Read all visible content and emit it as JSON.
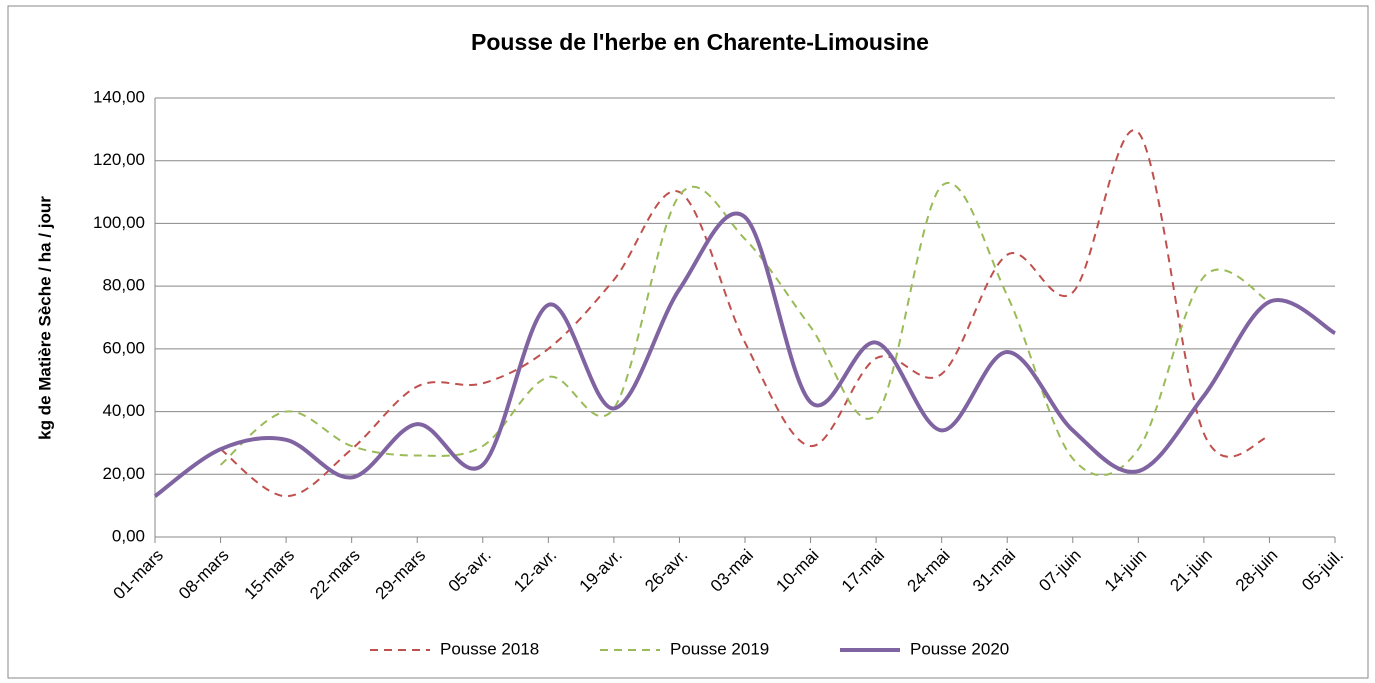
{
  "chart_data": {
    "type": "line",
    "title": "Pousse de l'herbe en Charente-Limousine",
    "y_label": "kg de Matière Sèche / ha / jour",
    "categories": [
      "01-mars",
      "08-mars",
      "15-mars",
      "22-mars",
      "29-mars",
      "05-avr.",
      "12-avr.",
      "19-avr.",
      "26-avr.",
      "03-mai",
      "10-mai",
      "17-mai",
      "24-mai",
      "31-mai",
      "07-juin",
      "14-juin",
      "21-juin",
      "28-juin",
      "05-juil."
    ],
    "series": [
      {
        "name": "Pousse 2018",
        "color": "#c0504d",
        "dash": "dashed",
        "values": [
          null,
          28,
          13,
          28,
          48,
          49,
          60,
          82,
          110,
          62,
          29,
          57,
          52,
          90,
          78,
          129,
          33,
          32,
          null
        ]
      },
      {
        "name": "Pousse 2019",
        "color": "#9bbb59",
        "dash": "dashed",
        "values": [
          null,
          23,
          40,
          29,
          26,
          29,
          51,
          41,
          109,
          95,
          67,
          39,
          112,
          77,
          25,
          28,
          83,
          75,
          null
        ]
      },
      {
        "name": "Pousse 2020",
        "color": "#8064a2",
        "dash": "solid",
        "values": [
          13,
          28,
          31,
          19,
          36,
          23,
          74,
          41,
          79,
          102,
          43,
          62,
          34,
          59,
          34,
          21,
          45,
          75,
          65
        ]
      }
    ],
    "ylim": [
      0,
      140
    ],
    "yticks": [
      {
        "value": 0,
        "label": "0,00"
      },
      {
        "value": 20,
        "label": "20,00"
      },
      {
        "value": 40,
        "label": "40,00"
      },
      {
        "value": 60,
        "label": "60,00"
      },
      {
        "value": 80,
        "label": "80,00"
      },
      {
        "value": 100,
        "label": "100,00"
      },
      {
        "value": 120,
        "label": "120,00"
      },
      {
        "value": 140,
        "label": "140,00"
      }
    ],
    "grid": true,
    "legend": "bottom"
  }
}
